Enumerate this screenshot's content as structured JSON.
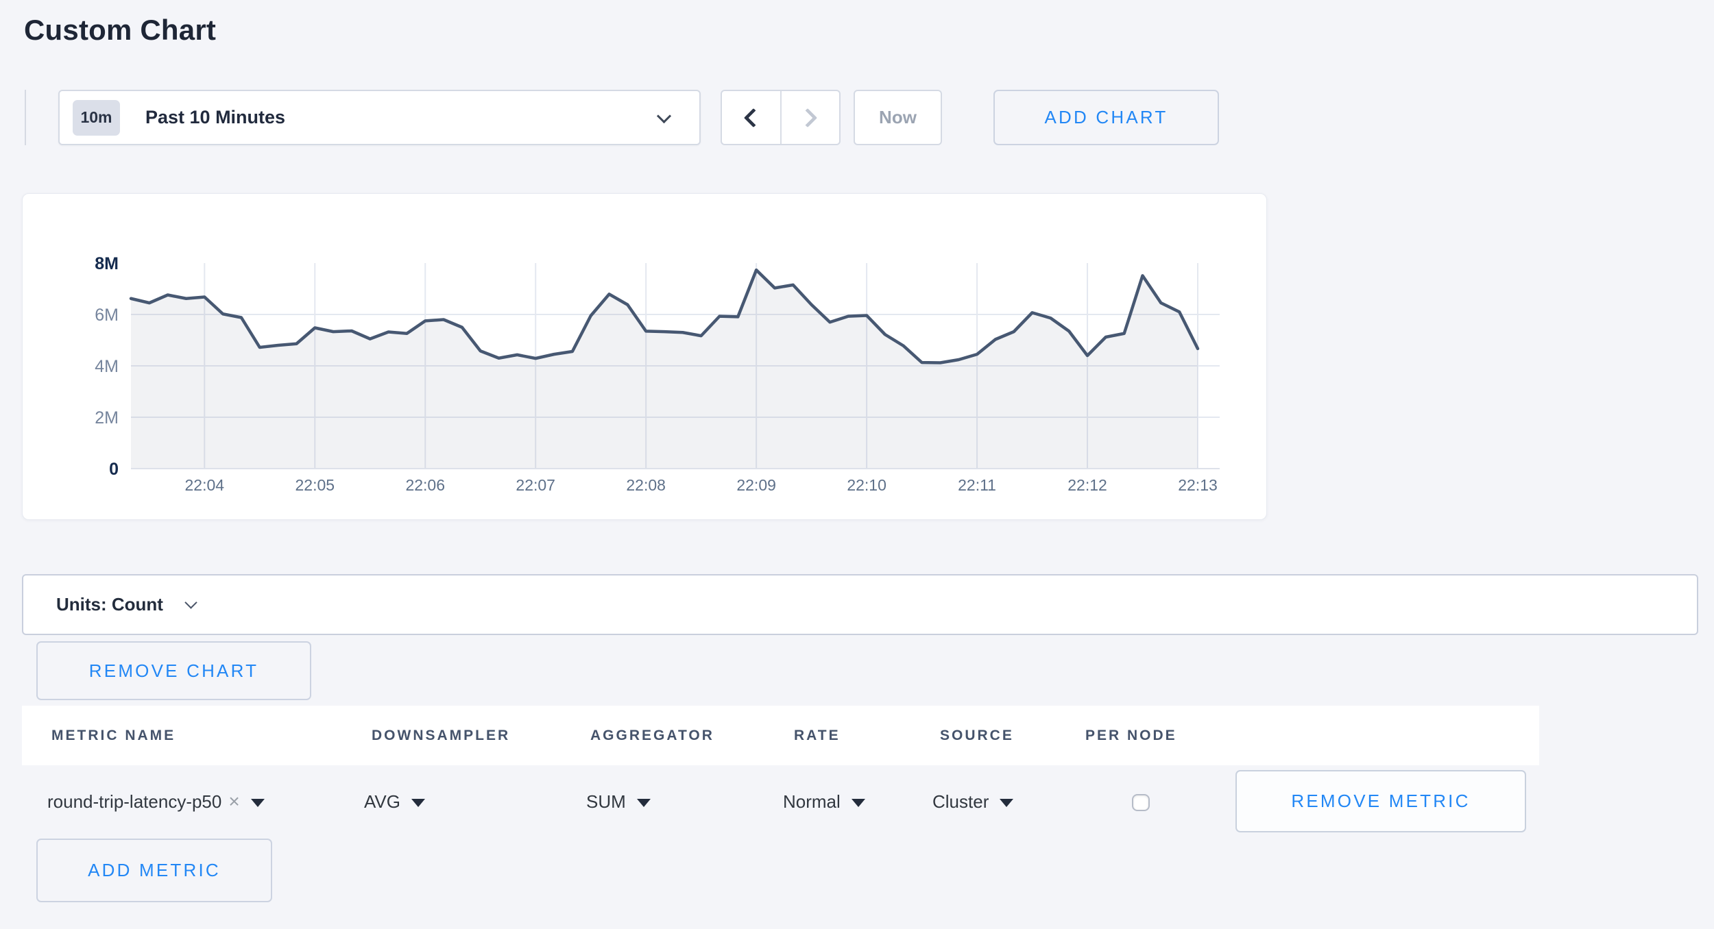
{
  "page": {
    "title": "Custom Chart"
  },
  "toolbar": {
    "timescale": {
      "badge": "10m",
      "label": "Past 10 Minutes"
    },
    "now_button": "Now",
    "add_chart_button": "ADD CHART"
  },
  "units_bar": {
    "label": "Units: Count"
  },
  "remove_chart_button": "REMOVE CHART",
  "metrics_table": {
    "columns": [
      "METRIC NAME",
      "DOWNSAMPLER",
      "AGGREGATOR",
      "RATE",
      "SOURCE",
      "PER NODE"
    ],
    "rows": [
      {
        "metric_name": "round-trip-latency-p50",
        "clear_icon": "×",
        "downsampler": "AVG",
        "aggregator": "SUM",
        "rate": "Normal",
        "source": "Cluster",
        "per_node_checked": false,
        "remove_button": "REMOVE METRIC"
      }
    ],
    "add_metric_button": "ADD METRIC"
  },
  "colors": {
    "accent_blue": "#2287f5",
    "line": "#475872",
    "fill": "rgba(71,88,114,0.08)",
    "grid": "#e4e8f0",
    "axis": "#dde1ea"
  },
  "chart_data": {
    "type": "area",
    "title": "",
    "xlabel": "",
    "ylabel": "count",
    "x_start": "22:03:20",
    "x_interval_seconds": 10,
    "x_ticks": [
      "22:04",
      "22:05",
      "22:06",
      "22:07",
      "22:08",
      "22:09",
      "22:10",
      "22:11",
      "22:12",
      "22:13"
    ],
    "x_tick_indices": [
      4,
      10,
      16,
      22,
      28,
      34,
      40,
      46,
      52,
      58
    ],
    "y_ticks": [
      "0",
      "2M",
      "4M",
      "6M",
      "8M"
    ],
    "y_tick_values_millions": [
      0,
      2,
      4,
      6,
      8
    ],
    "ylim_millions": [
      0,
      8
    ],
    "grid": true,
    "legend": "none",
    "series": [
      {
        "name": "round-trip-latency-p50",
        "values_millions": [
          6.62,
          6.45,
          6.76,
          6.62,
          6.68,
          6.02,
          5.88,
          4.72,
          4.8,
          4.86,
          5.48,
          5.33,
          5.36,
          5.05,
          5.32,
          5.26,
          5.75,
          5.8,
          5.5,
          4.58,
          4.3,
          4.43,
          4.29,
          4.45,
          4.56,
          5.95,
          6.79,
          6.38,
          5.35,
          5.33,
          5.3,
          5.17,
          5.93,
          5.91,
          7.73,
          7.03,
          7.15,
          6.38,
          5.7,
          5.93,
          5.96,
          5.22,
          4.78,
          4.13,
          4.12,
          4.24,
          4.45,
          5.03,
          5.33,
          6.07,
          5.86,
          5.35,
          4.4,
          5.12,
          5.26,
          7.51,
          6.45,
          6.1,
          4.67
        ]
      }
    ]
  }
}
